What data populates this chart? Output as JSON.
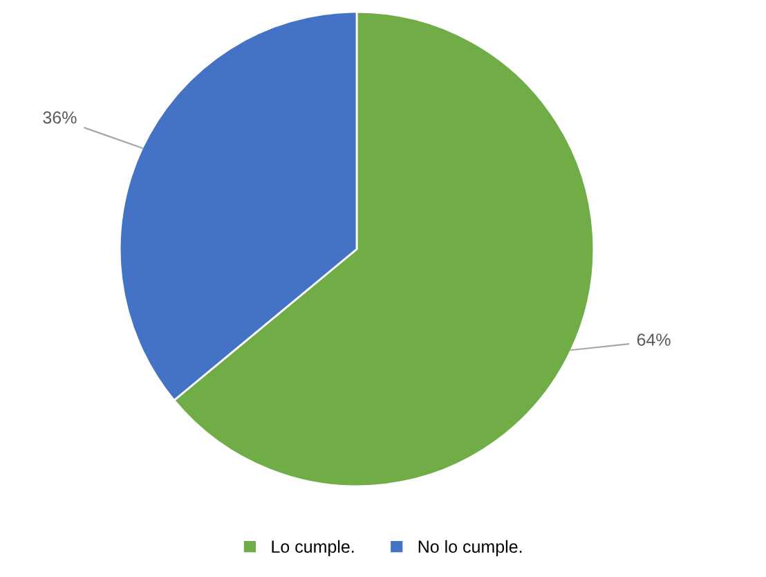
{
  "chart_data": {
    "type": "pie",
    "categories": [
      "Lo cumple.",
      "No lo cumple."
    ],
    "values": [
      64,
      36
    ],
    "colors": [
      "#70ad47",
      "#4472c4"
    ],
    "value_labels": [
      "64%",
      "36%"
    ],
    "legend": "bottom"
  }
}
